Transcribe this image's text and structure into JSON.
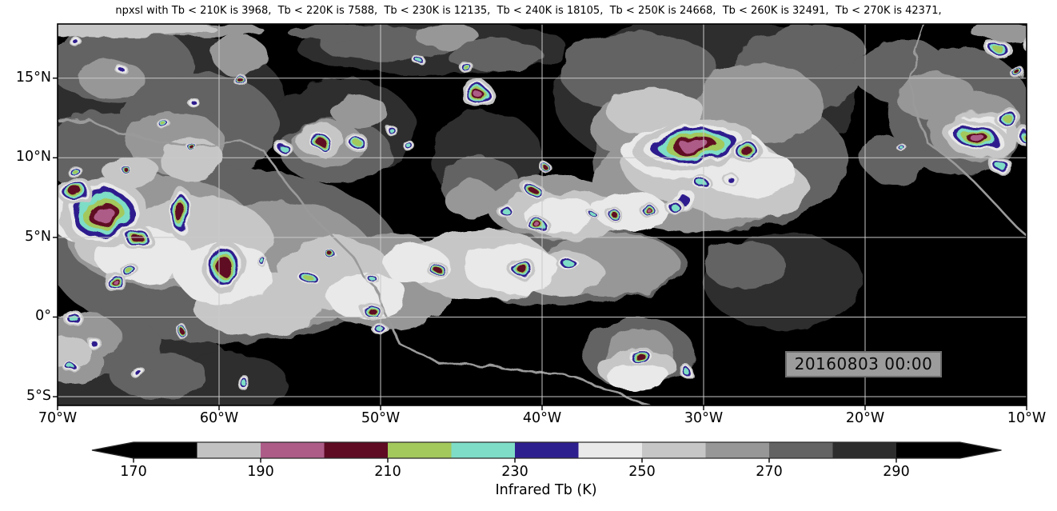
{
  "title": "npxsl with Tb < 210K is 3968,  Tb < 220K is 7588,  Tb < 230K is 12135,  Tb < 240K is 18105,  Tb < 250K is 24668,  Tb < 260K is 32491,  Tb < 270K is 42371,",
  "timestamp": "20160803 00:00",
  "style_colors": {
    "background": "#000000",
    "figure_bg": "#ffffff",
    "gridline": "#c9c9c9",
    "coastline": "#9a9a9a",
    "frame": "#000000",
    "timestamp_bg": "#9c9c9c",
    "timestamp_border": "#6f6f6f"
  },
  "chart_data": {
    "type": "heatmap",
    "title": "npxsl with Tb < 210K is 3968,  Tb < 220K is 7588,  Tb < 230K is 12135,  Tb < 240K is 18105,  Tb < 250K is 24668,  Tb < 260K is 32491,  Tb < 270K is 42371,",
    "xlabel": "",
    "ylabel": "",
    "lon_range": [
      -70,
      -10
    ],
    "lat_range": [
      -5.55,
      18.4
    ],
    "grid": true,
    "x_ticks": {
      "values": [
        -70,
        -60,
        -50,
        -40,
        -30,
        -20,
        -10
      ],
      "labels": [
        "70°W",
        "60°W",
        "50°W",
        "40°W",
        "30°W",
        "20°W",
        "10°W"
      ]
    },
    "y_ticks": {
      "values": [
        15,
        10,
        5,
        0,
        -5
      ],
      "labels": [
        "15°N",
        "10°N",
        "5°N",
        "0°",
        "5°S"
      ]
    },
    "gridlines": {
      "lons": [
        -60,
        -50,
        -40,
        -30,
        -20
      ],
      "lats": [
        15,
        10,
        5,
        0,
        -5
      ]
    },
    "colorbar": {
      "label": "Infrared Tb (K)",
      "extend": "both",
      "levels": [
        170,
        180,
        190,
        200,
        210,
        220,
        230,
        240,
        250,
        260,
        270,
        280,
        290,
        300
      ],
      "ticks": [
        170,
        190,
        210,
        230,
        250,
        270,
        290
      ],
      "colors": [
        "#000000",
        "#c2c2c2",
        "#ad5c88",
        "#5e0b23",
        "#a3c85c",
        "#7eddc6",
        "#2e1f8e",
        "#e9e9e9",
        "#c6c6c6",
        "#979797",
        "#636363",
        "#2d2d2d",
        "#000000"
      ]
    },
    "cells_format": "[lon, lat, rx_deg, ry_deg, intensity_level(1=white..6=pink), rot_deg]",
    "cells": [
      [
        -58.7,
        14.9,
        0.35,
        0.3,
        5,
        0
      ],
      [
        -61.7,
        13.6,
        0.3,
        0.25,
        2,
        0
      ],
      [
        -63.3,
        12.0,
        0.35,
        0.25,
        4,
        0
      ],
      [
        -61.7,
        10.7,
        0.3,
        0.25,
        5,
        0
      ],
      [
        -65.9,
        9.4,
        0.3,
        0.25,
        5,
        0
      ],
      [
        -69.0,
        9.2,
        0.4,
        0.3,
        4,
        0
      ],
      [
        -56.0,
        10.6,
        0.45,
        0.35,
        3,
        0
      ],
      [
        -53.8,
        11.1,
        0.65,
        0.55,
        5,
        0
      ],
      [
        -51.5,
        11.0,
        0.55,
        0.45,
        4,
        0
      ],
      [
        -49.3,
        11.7,
        0.3,
        0.25,
        3,
        0
      ],
      [
        -47.6,
        16.1,
        0.3,
        0.25,
        3,
        0
      ],
      [
        -44.6,
        15.6,
        0.35,
        0.3,
        4,
        0
      ],
      [
        -44.0,
        14.0,
        0.8,
        0.7,
        6,
        0
      ],
      [
        -42.4,
        6.8,
        0.45,
        0.35,
        3,
        0
      ],
      [
        -39.8,
        9.4,
        0.3,
        0.25,
        5,
        0
      ],
      [
        -40.5,
        7.9,
        0.7,
        0.4,
        5,
        25
      ],
      [
        -40.3,
        5.8,
        0.6,
        0.45,
        6,
        0
      ],
      [
        -35.5,
        6.4,
        0.4,
        0.35,
        5,
        0
      ],
      [
        -33.4,
        6.7,
        0.45,
        0.35,
        6,
        0
      ],
      [
        -36.7,
        6.3,
        0.25,
        0.2,
        3,
        0
      ],
      [
        -30.6,
        10.8,
        3.0,
        1.2,
        6,
        -8
      ],
      [
        -27.3,
        10.4,
        0.8,
        0.6,
        5,
        0
      ],
      [
        -31.3,
        7.3,
        0.9,
        0.5,
        2,
        -15
      ],
      [
        -30.0,
        8.3,
        0.5,
        0.4,
        3,
        0
      ],
      [
        -31.9,
        7.0,
        0.5,
        0.35,
        3,
        0
      ],
      [
        -28.4,
        8.7,
        0.4,
        0.3,
        2,
        0
      ],
      [
        -17.7,
        10.6,
        0.25,
        0.2,
        3,
        0
      ],
      [
        -13.1,
        11.3,
        1.7,
        0.85,
        6,
        12
      ],
      [
        -11.1,
        12.4,
        0.7,
        0.5,
        4,
        0
      ],
      [
        -11.6,
        9.5,
        0.6,
        0.4,
        3,
        0
      ],
      [
        -9.8,
        11.3,
        0.7,
        0.55,
        5,
        0
      ],
      [
        -11.7,
        16.8,
        0.65,
        0.45,
        4,
        0
      ],
      [
        -10.5,
        15.3,
        0.4,
        0.3,
        5,
        0
      ],
      [
        -9.7,
        17.2,
        0.55,
        0.4,
        3,
        0
      ],
      [
        -67.2,
        6.5,
        2.2,
        1.65,
        6,
        -10
      ],
      [
        -68.9,
        7.9,
        0.9,
        0.7,
        5,
        0
      ],
      [
        -65.1,
        5.0,
        0.8,
        0.6,
        5,
        0
      ],
      [
        -62.3,
        6.45,
        0.7,
        1.3,
        5,
        0
      ],
      [
        -59.7,
        3.2,
        1.0,
        1.35,
        5,
        0
      ],
      [
        -66.4,
        2.2,
        0.6,
        0.5,
        6,
        0
      ],
      [
        -65.5,
        2.85,
        0.5,
        0.4,
        4,
        0
      ],
      [
        -57.2,
        3.4,
        0.3,
        0.25,
        3,
        0
      ],
      [
        -54.5,
        2.5,
        0.55,
        0.45,
        4,
        0
      ],
      [
        -53.0,
        3.85,
        0.35,
        0.25,
        5,
        0
      ],
      [
        -50.6,
        2.5,
        0.35,
        0.25,
        3,
        0
      ],
      [
        -50.5,
        0.35,
        0.55,
        0.45,
        5,
        0
      ],
      [
        -50.0,
        -0.8,
        0.4,
        0.3,
        3,
        0
      ],
      [
        -46.6,
        3.1,
        0.5,
        0.4,
        5,
        0
      ],
      [
        -41.2,
        3.0,
        0.7,
        0.55,
        5,
        0
      ],
      [
        -38.3,
        3.3,
        0.6,
        0.4,
        3,
        0
      ],
      [
        -34.1,
        -2.3,
        0.7,
        0.5,
        5,
        0
      ],
      [
        -31.1,
        -3.4,
        0.3,
        0.35,
        3,
        0
      ],
      [
        -69.1,
        0.0,
        0.5,
        0.4,
        3,
        0
      ],
      [
        -67.7,
        -1.7,
        0.4,
        0.3,
        2,
        0
      ],
      [
        -69.1,
        -3.2,
        0.4,
        0.3,
        3,
        0
      ],
      [
        -65.1,
        -3.4,
        0.4,
        0.3,
        2,
        0
      ],
      [
        -62.3,
        -0.9,
        0.25,
        0.4,
        5,
        0
      ],
      [
        -58.5,
        -4.1,
        0.3,
        0.4,
        3,
        0
      ],
      [
        -68.9,
        17.3,
        0.3,
        0.25,
        2,
        0
      ],
      [
        -66.1,
        15.6,
        0.3,
        0.25,
        2,
        0
      ],
      [
        -48.2,
        10.7,
        0.3,
        0.25,
        3,
        0
      ]
    ],
    "clouds_format": "[lon, lat, rx_deg, ry_deg, shade(1=darkest..5=lightest)]",
    "clouds": [
      [
        -63.7,
        13.4,
        7.9,
        4.5,
        1
      ],
      [
        -66.1,
        15.9,
        4.5,
        2.5,
        2
      ],
      [
        -61.2,
        11.9,
        4.9,
        3.5,
        2
      ],
      [
        -67.6,
        10.4,
        3.5,
        2.5,
        2
      ],
      [
        -62.7,
        10.9,
        3.0,
        2.0,
        3
      ],
      [
        -66.6,
        14.9,
        2.0,
        1.25,
        3
      ],
      [
        -58.7,
        16.4,
        1.7,
        1.25,
        3
      ],
      [
        -61.7,
        9.9,
        2.0,
        1.4,
        4
      ],
      [
        -65.4,
        9.1,
        1.7,
        1.1,
        4
      ],
      [
        -46.8,
        16.9,
        8.4,
        1.75,
        1
      ],
      [
        -49.8,
        17.15,
        4.0,
        1.1,
        2
      ],
      [
        -42.9,
        16.4,
        3.0,
        1.0,
        2
      ],
      [
        -45.9,
        17.65,
        2.0,
        0.75,
        3
      ],
      [
        -59.7,
        3.85,
        10.9,
        5.5,
        2
      ],
      [
        -63.7,
        5.35,
        5.9,
        3.5,
        3
      ],
      [
        -56.2,
        3.3,
        5.9,
        4.0,
        3
      ],
      [
        -49.8,
        2.3,
        4.45,
        3.0,
        3
      ],
      [
        -61.2,
        4.85,
        4.45,
        2.75,
        4
      ],
      [
        -52.8,
        2.8,
        3.45,
        2.25,
        4
      ],
      [
        -66.1,
        4.85,
        3.0,
        2.0,
        4
      ],
      [
        -57.7,
        0.8,
        4.0,
        2.0,
        4
      ],
      [
        -64.7,
        3.85,
        3.0,
        1.75,
        5
      ],
      [
        -59.7,
        2.8,
        3.0,
        2.0,
        5
      ],
      [
        -50.8,
        1.3,
        2.5,
        1.5,
        5
      ],
      [
        -47.8,
        3.3,
        2.0,
        1.25,
        5
      ],
      [
        -68.6,
        6.35,
        2.0,
        1.5,
        5
      ],
      [
        -43.9,
        3.3,
        4.45,
        2.25,
        4
      ],
      [
        -41.9,
        3.05,
        3.0,
        1.5,
        5
      ],
      [
        -38.9,
        2.8,
        2.7,
        1.4,
        4
      ],
      [
        -30.0,
        13.9,
        9.4,
        5.0,
        1
      ],
      [
        -29.0,
        9.9,
        7.9,
        4.5,
        2
      ],
      [
        -34.0,
        15.4,
        4.95,
        2.5,
        2
      ],
      [
        -24.1,
        15.4,
        4.0,
        2.5,
        2
      ],
      [
        -30.5,
        8.35,
        6.4,
        3.0,
        3
      ],
      [
        -26.6,
        13.4,
        4.0,
        2.5,
        3
      ],
      [
        -34.0,
        11.9,
        3.0,
        2.0,
        3
      ],
      [
        -30.0,
        9.35,
        4.95,
        2.25,
        4
      ],
      [
        -27.5,
        8.1,
        4.0,
        2.0,
        4
      ],
      [
        -33.0,
        12.9,
        3.0,
        1.5,
        4
      ],
      [
        -30.5,
        10.35,
        4.45,
        1.75,
        5
      ],
      [
        -27.3,
        9.1,
        3.0,
        1.5,
        5
      ],
      [
        -23.1,
        16.9,
        3.0,
        1.5,
        2
      ],
      [
        -14.2,
        12.9,
        4.45,
        4.0,
        2
      ],
      [
        -17.7,
        15.4,
        3.0,
        2.0,
        2
      ],
      [
        -13.2,
        11.9,
        3.0,
        2.25,
        3
      ],
      [
        -15.7,
        13.9,
        2.5,
        1.5,
        3
      ],
      [
        -12.7,
        11.4,
        2.25,
        1.5,
        4
      ],
      [
        -18.2,
        9.9,
        2.0,
        1.5,
        2
      ],
      [
        -12.9,
        11.6,
        1.7,
        1.1,
        5
      ],
      [
        -38.9,
        3.3,
        7.9,
        2.5,
        2
      ],
      [
        -35.9,
        3.3,
        4.45,
        2.0,
        3
      ],
      [
        -34.0,
        -2.3,
        3.45,
        2.25,
        2
      ],
      [
        -34.0,
        -2.3,
        2.25,
        1.5,
        3
      ],
      [
        -34.1,
        -3.2,
        2.5,
        1.25,
        4
      ],
      [
        -34.0,
        -3.8,
        2.0,
        0.9,
        5
      ],
      [
        -66.1,
        -3.2,
        6.9,
        3.0,
        1
      ],
      [
        -59.7,
        -4.2,
        4.0,
        2.0,
        1
      ],
      [
        -67.6,
        -1.7,
        4.0,
        2.0,
        2
      ],
      [
        -63.7,
        -3.7,
        3.0,
        1.5,
        2
      ],
      [
        -68.6,
        -1.2,
        2.5,
        1.5,
        3
      ],
      [
        -69.1,
        -2.95,
        2.0,
        1.25,
        3
      ],
      [
        -69.4,
        -2.2,
        1.5,
        1.0,
        4
      ],
      [
        -25.1,
        2.3,
        4.95,
        3.0,
        1
      ],
      [
        -27.5,
        3.3,
        2.5,
        1.5,
        2
      ],
      [
        -52.3,
        11.9,
        4.45,
        3.0,
        1
      ],
      [
        -52.8,
        10.4,
        3.45,
        2.0,
        2
      ],
      [
        -53.3,
        10.9,
        2.25,
        1.4,
        3
      ],
      [
        -51.3,
        12.9,
        1.7,
        1.1,
        3
      ],
      [
        -53.8,
        11.15,
        1.5,
        1.0,
        4
      ],
      [
        -43.4,
        9.9,
        3.45,
        3.0,
        1
      ],
      [
        -43.9,
        8.4,
        2.5,
        1.75,
        2
      ],
      [
        -44.4,
        7.4,
        1.7,
        1.1,
        3
      ],
      [
        -39.4,
        6.9,
        4.0,
        2.0,
        3
      ],
      [
        -37.9,
        6.4,
        3.0,
        1.5,
        4
      ],
      [
        -40.4,
        6.65,
        2.0,
        1.25,
        4
      ],
      [
        -38.9,
        6.4,
        2.25,
        1.1,
        5
      ],
      [
        -34.5,
        6.65,
        2.25,
        1.25,
        5
      ],
      [
        -66.1,
        18.15,
        5.9,
        0.6,
        4
      ],
      [
        -61.2,
        18.0,
        4.0,
        0.5,
        3
      ],
      [
        -52.8,
        17.9,
        3.0,
        0.5,
        2
      ],
      [
        -11.45,
        17.9,
        2.0,
        0.6,
        3
      ]
    ],
    "coastlines": [
      [
        [
          -70,
          12.4
        ],
        [
          -68.1,
          12.5
        ],
        [
          -66.1,
          11.4
        ],
        [
          -63.7,
          11.0
        ],
        [
          -61.2,
          10.7
        ],
        [
          -58.7,
          11.1
        ],
        [
          -57.2,
          10.4
        ],
        [
          -55.8,
          8.4
        ],
        [
          -54.3,
          6.4
        ],
        [
          -52.8,
          4.9
        ],
        [
          -51.8,
          3.9
        ],
        [
          -51.1,
          2.6
        ],
        [
          -50.3,
          1.85
        ],
        [
          -49.8,
          0.33
        ],
        [
          -48.8,
          -1.7
        ],
        [
          -47.8,
          -2.2
        ],
        [
          -46.6,
          -2.7
        ],
        [
          -45.1,
          -3.0
        ],
        [
          -43.4,
          -3.1
        ],
        [
          -41.4,
          -3.35
        ],
        [
          -39.4,
          -3.5
        ],
        [
          -37.9,
          -3.85
        ],
        [
          -36.5,
          -4.35
        ],
        [
          -34.5,
          -5.15
        ],
        [
          -33.2,
          -5.6
        ]
      ],
      [
        [
          -16.2,
          18.4
        ],
        [
          -16.7,
          16.9
        ],
        [
          -17.3,
          14.9
        ],
        [
          -17.0,
          13.4
        ],
        [
          -16.3,
          11.1
        ],
        [
          -15.0,
          10.1
        ],
        [
          -13.5,
          8.75
        ],
        [
          -11.8,
          6.95
        ],
        [
          -10.8,
          5.85
        ],
        [
          -10.0,
          5.1
        ],
        [
          -9.5,
          4.7
        ]
      ]
    ]
  }
}
